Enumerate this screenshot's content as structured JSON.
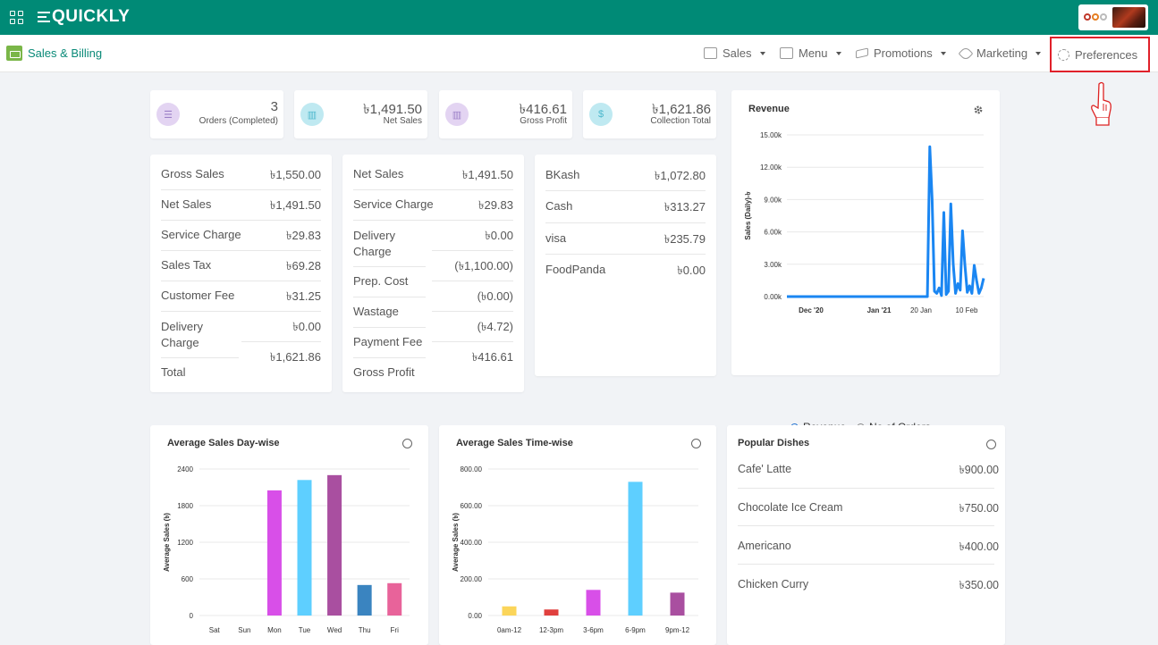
{
  "header": {
    "logo_text": "QUICKLY"
  },
  "subheader": {
    "title": "Sales & Billing"
  },
  "nav": [
    {
      "label": "Sales",
      "icon": "monitor-icon"
    },
    {
      "label": "Menu",
      "icon": "menu-book-icon"
    },
    {
      "label": "Promotions",
      "icon": "megaphone-icon"
    },
    {
      "label": "Marketing",
      "icon": "rocket-icon"
    }
  ],
  "preferences": {
    "label": "Preferences",
    "icon": "gear-icon"
  },
  "kpis": [
    {
      "value": "3",
      "label": "Orders (Completed)",
      "color": "#e3d4f2"
    },
    {
      "value": "৳1,491.50",
      "label": "Net Sales",
      "color": "#bfe9f1"
    },
    {
      "value": "৳416.61",
      "label": "Gross Profit",
      "color": "#e3d4f2"
    },
    {
      "value": "৳1,621.86",
      "label": "Collection Total",
      "color": "#bfe9f1"
    }
  ],
  "summary1": [
    {
      "k": "Gross Sales",
      "v": "৳1,550.00"
    },
    {
      "k": "Net Sales",
      "v": "৳1,491.50"
    },
    {
      "k": "Service Charge",
      "v": "৳29.83"
    },
    {
      "k": "Sales Tax",
      "v": "৳69.28"
    },
    {
      "k": "Customer Fee",
      "v": "৳31.25"
    },
    {
      "k": "Delivery Charge",
      "v": "৳0.00"
    },
    {
      "k": "Total",
      "v": "৳1,621.86"
    }
  ],
  "summary2": [
    {
      "k": "Net Sales",
      "v": "৳1,491.50"
    },
    {
      "k": "Service Charge",
      "v": "৳29.83"
    },
    {
      "k": "Delivery Charge",
      "v": "৳0.00"
    },
    {
      "k": "Prep. Cost",
      "v": "(৳1,100.00)"
    },
    {
      "k": "Wastage",
      "v": "(৳0.00)"
    },
    {
      "k": "Payment Fee",
      "v": "(৳4.72)"
    },
    {
      "k": "Gross Profit",
      "v": "৳416.61"
    }
  ],
  "payments": [
    {
      "k": "BKash",
      "v": "৳1,072.80"
    },
    {
      "k": "Cash",
      "v": "৳313.27"
    },
    {
      "k": "visa",
      "v": "৳235.79"
    },
    {
      "k": "FoodPanda",
      "v": "৳0.00"
    }
  ],
  "revenue": {
    "title": "Revenue",
    "ylabel": "Sales (Daily)-৳",
    "legend": [
      "Revenue",
      "No of Orders"
    ],
    "color": "#1a86f2",
    "chart_data": {
      "type": "line",
      "ylim": [
        0,
        15000
      ],
      "yticks": [
        "15.00k",
        "12.00k",
        "9.00k",
        "6.00k",
        "3.00k",
        "0.00k"
      ],
      "xticks": [
        "Dec '20",
        "Jan '21",
        "20 Jan",
        "10 Feb"
      ],
      "series": [
        {
          "values": [
            0,
            0,
            0,
            0,
            0,
            0,
            0,
            0,
            0,
            0,
            0,
            0,
            0,
            0,
            0,
            0,
            0,
            0,
            0,
            0,
            0,
            0,
            0,
            0,
            0,
            0,
            0,
            0,
            0,
            0,
            0,
            0,
            0,
            0,
            0,
            0,
            0,
            0,
            0,
            0,
            0,
            0,
            0,
            0,
            0,
            0,
            0,
            0,
            0,
            0,
            0,
            0,
            0,
            0,
            0,
            0,
            0,
            0,
            0,
            0,
            0,
            13900,
            9000,
            500,
            300,
            800,
            100,
            7800,
            200,
            500,
            8600,
            3000,
            300,
            1200,
            600,
            6100,
            3000,
            400,
            1000,
            300,
            2900,
            1500,
            300,
            800,
            1700
          ]
        }
      ]
    }
  },
  "day_chart": {
    "title": "Average Sales Day-wise",
    "ylabel": "Average Sales (৳)",
    "chart_data": {
      "type": "bar",
      "categories": [
        "Sat",
        "Sun",
        "Mon",
        "Tue",
        "Wed",
        "Thu",
        "Fri"
      ],
      "values": [
        0,
        0,
        2050,
        2220,
        2300,
        500,
        530
      ],
      "colors": [
        "#d84fe8",
        "#d84fe8",
        "#d84fe8",
        "#5ecfff",
        "#a94fa0",
        "#3a84c0",
        "#e8639a"
      ],
      "yticks": [
        "2400",
        "1800",
        "1200",
        "600",
        "0"
      ],
      "ylim": [
        0,
        2400
      ]
    }
  },
  "time_chart": {
    "title": "Average Sales Time-wise",
    "ylabel": "Average Sales (৳)",
    "chart_data": {
      "type": "bar",
      "categories": [
        "0am-12",
        "12-3pm",
        "3-6pm",
        "6-9pm",
        "9pm-12"
      ],
      "values": [
        50,
        33,
        140,
        730,
        125
      ],
      "colors": [
        "#fbd55a",
        "#e0403e",
        "#d84fe8",
        "#5ecfff",
        "#a94fa0"
      ],
      "yticks": [
        "800.00",
        "600.00",
        "400.00",
        "200.00",
        "0.00"
      ],
      "ylim": [
        0,
        800
      ]
    }
  },
  "popular": {
    "title": "Popular Dishes",
    "items": [
      {
        "name": "Cafe' Latte",
        "value": "৳900.00"
      },
      {
        "name": "Chocolate Ice Cream",
        "value": "৳750.00"
      },
      {
        "name": "Americano",
        "value": "৳400.00"
      },
      {
        "name": "Chicken Curry",
        "value": "৳350.00"
      }
    ]
  }
}
